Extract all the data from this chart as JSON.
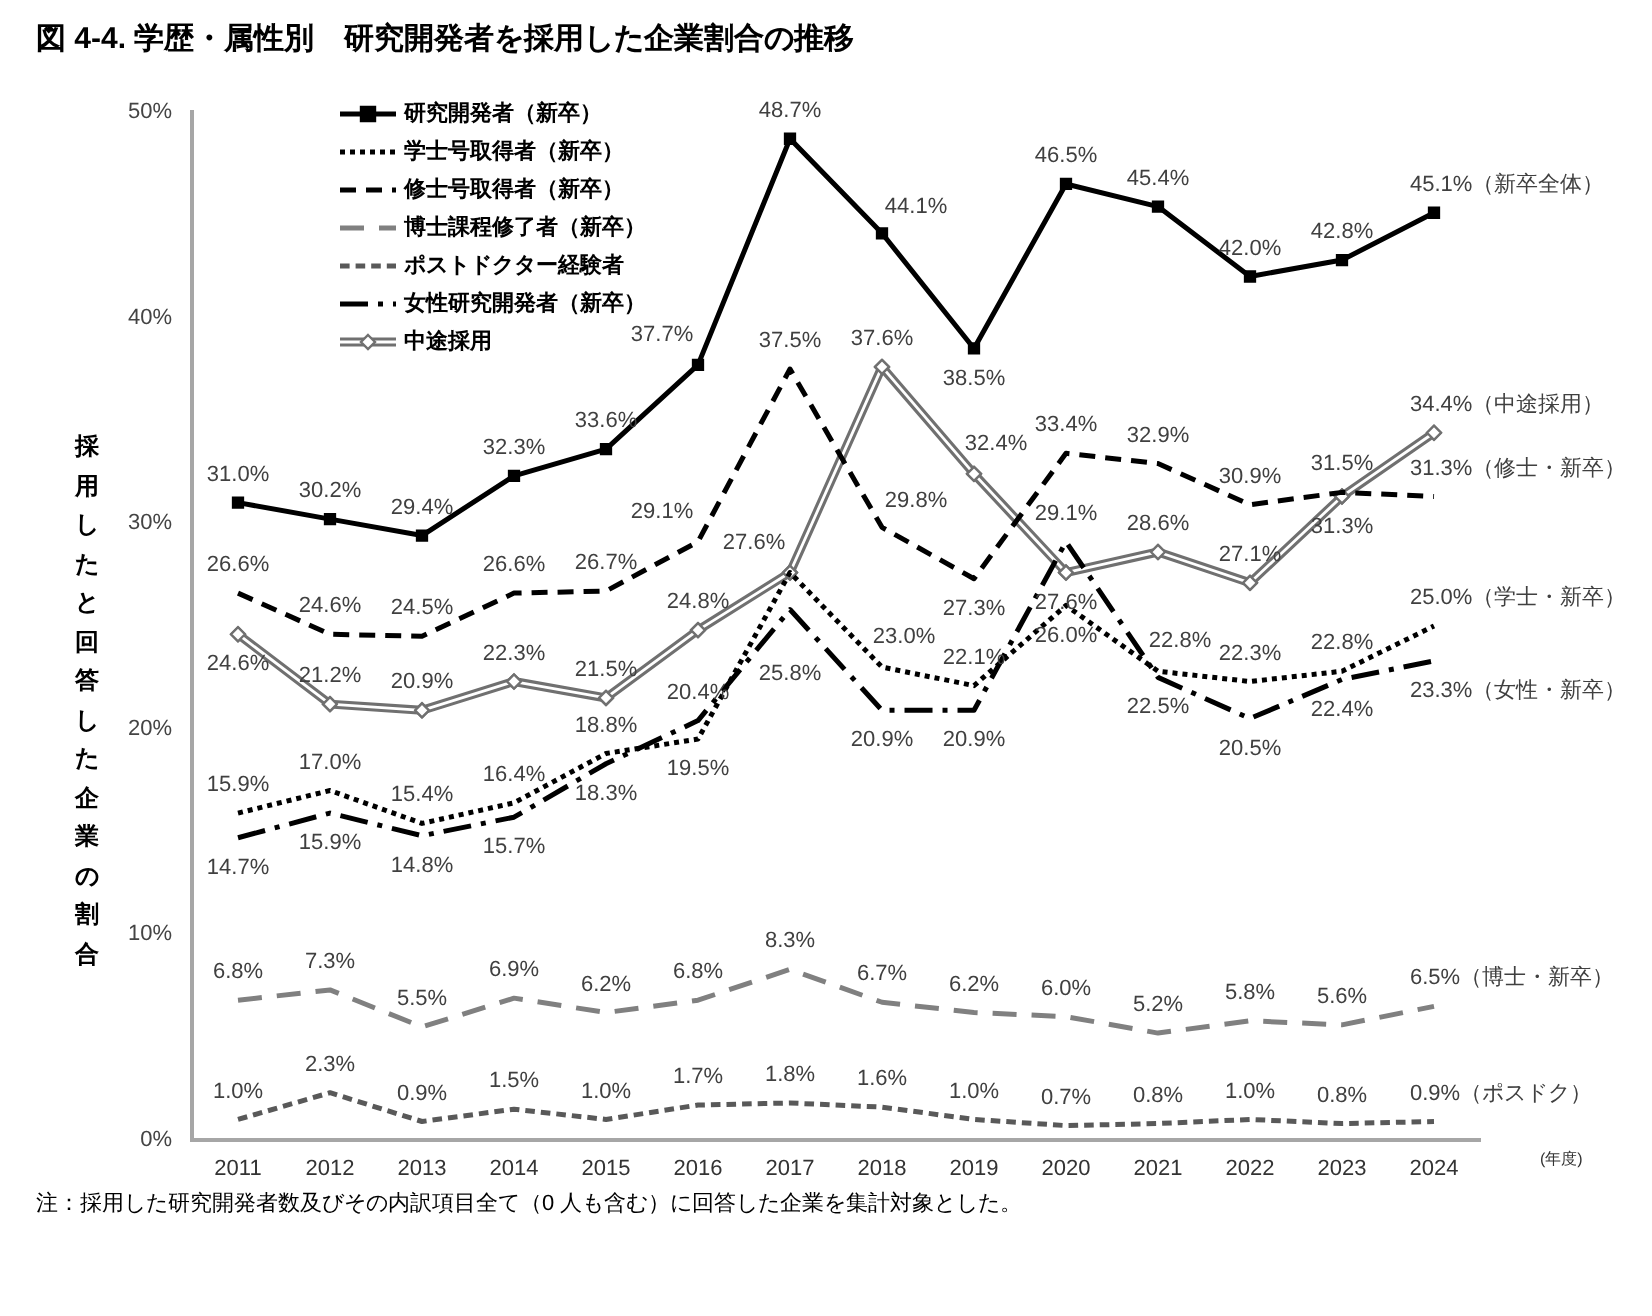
{
  "chart_data": {
    "type": "line",
    "title": "図 4-4. 学歴・属性別　研究開発者を採用した企業割合の推移",
    "xlabel": "(年度)",
    "ylabel": "採用したと回答した企業の割合",
    "annotations": [
      "注：採用した研究開発者数及びその内訳項目全て（0 人も含む）に回答した企業を集計対象とした。"
    ],
    "categories": [
      "2011",
      "2012",
      "2013",
      "2014",
      "2015",
      "2016",
      "2017",
      "2018",
      "2019",
      "2020",
      "2021",
      "2022",
      "2023",
      "2024"
    ],
    "ylim": [
      0,
      50
    ],
    "yticks": [
      {
        "value": 0,
        "label": "0%"
      },
      {
        "value": 10,
        "label": "10%"
      },
      {
        "value": 20,
        "label": "20%"
      },
      {
        "value": 30,
        "label": "30%"
      },
      {
        "value": 40,
        "label": "40%"
      },
      {
        "value": 50,
        "label": "50%"
      }
    ],
    "legend": "top left",
    "series": [
      {
        "name": "研究開発者（新卒）",
        "color": "#000000",
        "line_style": "solid",
        "marker": "square",
        "values": [
          31.0,
          30.2,
          29.4,
          32.3,
          33.6,
          37.7,
          48.7,
          44.1,
          38.5,
          46.5,
          45.4,
          42.0,
          42.8,
          45.1
        ],
        "value_labels": [
          "31.0%",
          "30.2%",
          "29.4%",
          "32.3%",
          "33.6%",
          "37.7%",
          "48.7%",
          "44.1%",
          "38.5%",
          "46.5%",
          "45.4%",
          "42.0%",
          "42.8%",
          "45.1%（新卒全体）"
        ]
      },
      {
        "name": "学士号取得者（新卒）",
        "color": "#000000",
        "line_style": "dotted",
        "marker": "none",
        "values": [
          15.9,
          17.0,
          15.4,
          16.4,
          18.8,
          19.5,
          27.6,
          23.0,
          22.1,
          26.0,
          22.8,
          22.3,
          22.8,
          25.0
        ],
        "value_labels": [
          "15.9%",
          "17.0%",
          "15.4%",
          "16.4%",
          "18.8%",
          "19.5%",
          null,
          "23.0%",
          "22.1%",
          "26.0%",
          "22.8%",
          "22.3%",
          "22.8%",
          "25.0%（学士・新卒）"
        ]
      },
      {
        "name": "修士号取得者（新卒）",
        "color": "#000000",
        "line_style": "dashed",
        "marker": "none",
        "values": [
          26.6,
          24.6,
          24.5,
          26.6,
          26.7,
          29.1,
          37.5,
          29.8,
          27.3,
          33.4,
          32.9,
          30.9,
          31.5,
          31.3
        ],
        "value_labels": [
          "26.6%",
          "24.6%",
          "24.5%",
          "26.6%",
          "26.7%",
          "29.1%",
          "37.5%",
          "29.8%",
          "27.3%",
          "33.4%",
          "32.9%",
          "30.9%",
          "31.5%",
          "31.3%（修士・新卒）"
        ]
      },
      {
        "name": "博士課程修了者（新卒）",
        "color": "#808080",
        "line_style": "dashed",
        "marker": "none",
        "values": [
          6.8,
          7.3,
          5.5,
          6.9,
          6.2,
          6.8,
          8.3,
          6.7,
          6.2,
          6.0,
          5.2,
          5.8,
          5.6,
          6.5
        ],
        "value_labels": [
          "6.8%",
          "7.3%",
          "5.5%",
          "6.9%",
          "6.2%",
          "6.8%",
          "8.3%",
          "6.7%",
          "6.2%",
          "6.0%",
          "5.2%",
          "5.8%",
          "5.6%",
          "6.5%（博士・新卒）"
        ]
      },
      {
        "name": "ポストドクター経験者",
        "color": "#595959",
        "line_style": "dashed",
        "marker": "none",
        "values": [
          1.0,
          2.3,
          0.9,
          1.5,
          1.0,
          1.7,
          1.8,
          1.6,
          1.0,
          0.7,
          0.8,
          1.0,
          0.8,
          0.9
        ],
        "value_labels": [
          "1.0%",
          "2.3%",
          "0.9%",
          "1.5%",
          "1.0%",
          "1.7%",
          "1.8%",
          "1.6%",
          "1.0%",
          "0.7%",
          "0.8%",
          "1.0%",
          "0.8%",
          "0.9%（ポスドク）"
        ]
      },
      {
        "name": "女性研究開発者（新卒）",
        "color": "#000000",
        "line_style": "dashdot",
        "marker": "none",
        "values": [
          14.7,
          15.9,
          14.8,
          15.7,
          18.3,
          20.4,
          25.8,
          20.9,
          20.9,
          29.1,
          22.5,
          20.5,
          22.4,
          23.3
        ],
        "value_labels": [
          "14.7%",
          "15.9%",
          "14.8%",
          "15.7%",
          "18.3%",
          "20.4%",
          "25.8%",
          "20.9%",
          "20.9%",
          "29.1%",
          "22.5%",
          "20.5%",
          "22.4%",
          "23.3%（女性・新卒）"
        ]
      },
      {
        "name": "中途採用",
        "color": "#707070",
        "line_style": "solid",
        "marker": "diamond",
        "values": [
          24.6,
          21.2,
          20.9,
          22.3,
          21.5,
          24.8,
          27.6,
          37.6,
          32.4,
          27.6,
          28.6,
          27.1,
          31.3,
          34.4
        ],
        "value_labels": [
          "24.6%",
          "21.2%",
          "20.9%",
          "22.3%",
          "21.5%",
          "24.8%",
          "27.6%",
          "37.6%",
          "32.4%",
          "27.6%",
          "28.6%",
          "27.1%",
          "31.3%",
          "34.4%（中途採用）"
        ]
      }
    ]
  }
}
